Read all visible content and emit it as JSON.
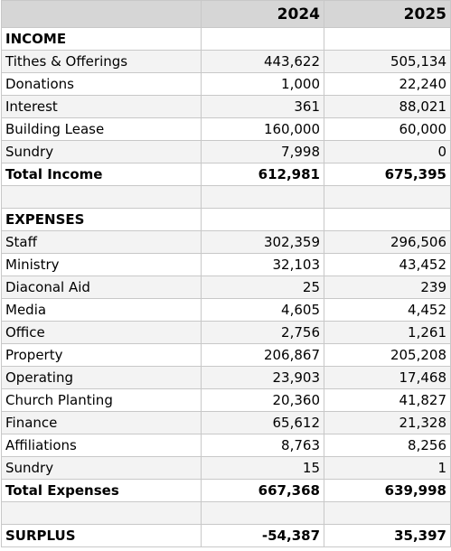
{
  "table": {
    "columns": [
      "2024",
      "2025"
    ],
    "rows": [
      {
        "cells": [
          "INCOME"
        ],
        "bold": true
      },
      {
        "cells": [
          "Tithes & Offerings",
          "443,622",
          "505,134"
        ]
      },
      {
        "cells": [
          "Donations",
          "1,000",
          "22,240"
        ]
      },
      {
        "cells": [
          "Interest",
          "361",
          "88,021"
        ]
      },
      {
        "cells": [
          "Building Lease",
          "160,000",
          "60,000"
        ]
      },
      {
        "cells": [
          "Sundry",
          "7,998",
          "0"
        ]
      },
      {
        "cells": [
          "Total Income",
          "612,981",
          "675,395"
        ],
        "bold": true
      },
      {
        "cells": []
      },
      {
        "cells": [
          "EXPENSES"
        ],
        "bold": true
      },
      {
        "cells": [
          "Staff",
          "302,359",
          "296,506"
        ]
      },
      {
        "cells": [
          "Ministry",
          "32,103",
          "43,452"
        ]
      },
      {
        "cells": [
          "Diaconal Aid",
          "25",
          "239"
        ]
      },
      {
        "cells": [
          "Media",
          "4,605",
          "4,452"
        ]
      },
      {
        "cells": [
          "Office",
          "2,756",
          "1,261"
        ]
      },
      {
        "cells": [
          "Property",
          "206,867",
          "205,208"
        ]
      },
      {
        "cells": [
          "Operating",
          "23,903",
          "17,468"
        ]
      },
      {
        "cells": [
          "Church Planting",
          "20,360",
          "41,827"
        ]
      },
      {
        "cells": [
          "Finance",
          "65,612",
          "21,328"
        ]
      },
      {
        "cells": [
          "Affiliations",
          "8,763",
          "8,256"
        ]
      },
      {
        "cells": [
          "Sundry",
          "15",
          "1"
        ]
      },
      {
        "cells": [
          "Total Expenses",
          "667,368",
          "639,998"
        ],
        "bold": true
      },
      {
        "cells": []
      },
      {
        "cells": [
          "SURPLUS",
          "-54,387",
          "35,397"
        ],
        "bold": true
      }
    ]
  }
}
